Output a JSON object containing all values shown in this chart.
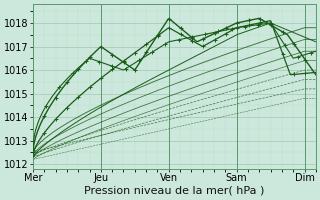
{
  "xlabel": "Pression niveau de la mer( hPa )",
  "bg_color": "#cce8dc",
  "plot_bg_color": "#cce8dc",
  "grid_major_color": "#aaccb8",
  "grid_minor_color": "#bbddc8",
  "line_color": "#1a5c1a",
  "ylim": [
    1011.8,
    1018.8
  ],
  "xlim": [
    0,
    100
  ],
  "yticks": [
    1012,
    1013,
    1014,
    1015,
    1016,
    1017,
    1018
  ],
  "xtick_positions": [
    0,
    24,
    48,
    72,
    96
  ],
  "xtick_labels": [
    "Mer",
    "Jeu",
    "Ven",
    "Sam",
    "Dim"
  ],
  "vline_positions": [
    0,
    24,
    48,
    72,
    96
  ],
  "xlabel_fontsize": 8,
  "ytick_fontsize": 7,
  "xtick_fontsize": 7
}
